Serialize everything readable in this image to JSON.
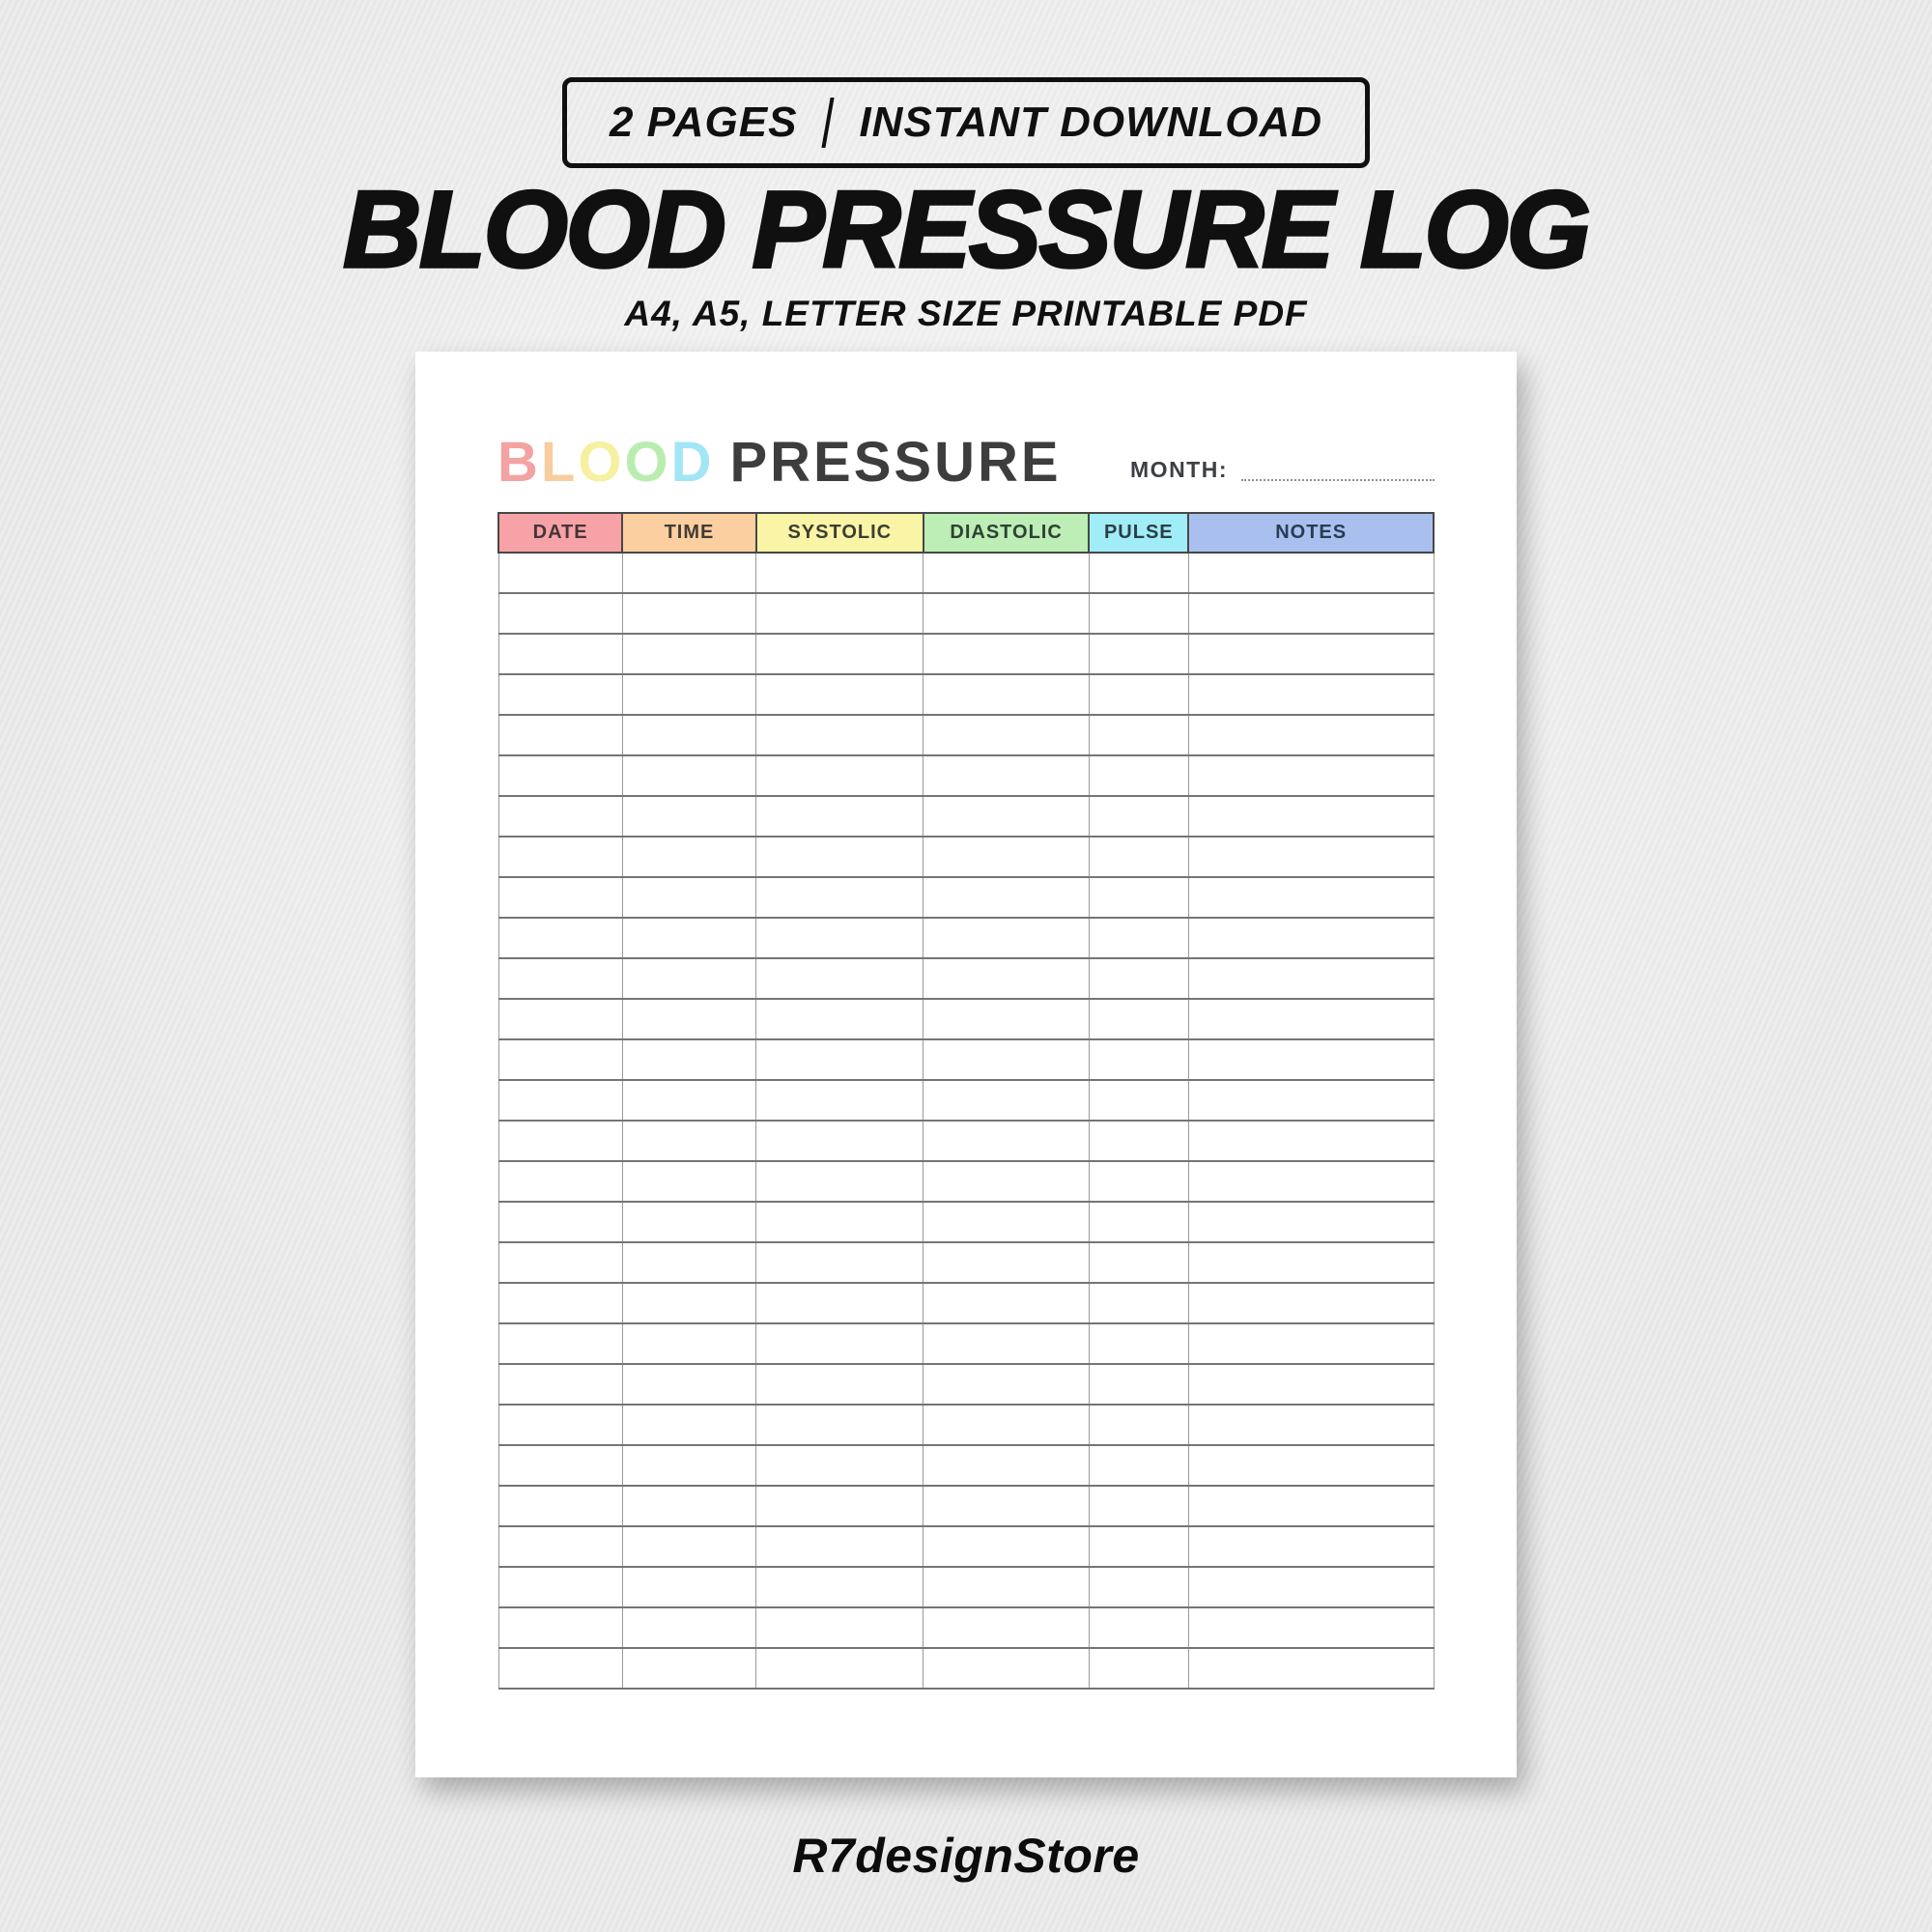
{
  "badge": {
    "left": "2 PAGES",
    "right": "INSTANT DOWNLOAD"
  },
  "title": "BLOOD PRESSURE LOG",
  "subtitle": "A4, A5, LETTER SIZE PRINTABLE PDF",
  "document": {
    "heading": {
      "colored_word": "BLOOD",
      "colored_letters": [
        {
          "char": "B",
          "color": "#f4a2a2"
        },
        {
          "char": "L",
          "color": "#f8cda0"
        },
        {
          "char": "O",
          "color": "#f6f0a0"
        },
        {
          "char": "O",
          "color": "#b9edb0"
        },
        {
          "char": "D",
          "color": "#a2e6f6"
        }
      ],
      "plain_word": "PRESSURE",
      "plain_color": "#3d3d3d"
    },
    "month_label": "MONTH:",
    "month_value": "",
    "table": {
      "columns": [
        {
          "label": "DATE",
          "color": "#f7a2a6",
          "width_pct": 13.25,
          "text_color": "#45343a"
        },
        {
          "label": "TIME",
          "color": "#fbcfa0",
          "width_pct": 14.3,
          "text_color": "#443c33"
        },
        {
          "label": "SYSTOLIC",
          "color": "#faf5a6",
          "width_pct": 17.9,
          "text_color": "#3c3d33"
        },
        {
          "label": "DIASTOLIC",
          "color": "#bceeb5",
          "width_pct": 17.7,
          "text_color": "#2f4234"
        },
        {
          "label": "PULSE",
          "color": "#a0edf7",
          "width_pct": 10.65,
          "text_color": "#2c3e44"
        },
        {
          "label": "NOTES",
          "color": "#a9c0ef",
          "width_pct": 26.2,
          "text_color": "#2b3a55"
        }
      ],
      "empty_row_count": 28,
      "cell_value": ""
    }
  },
  "footer": {
    "store_name": "R7designStore"
  },
  "colors": {
    "background": "#e9e9e9",
    "page": "#ffffff",
    "title_text": "#101010"
  }
}
